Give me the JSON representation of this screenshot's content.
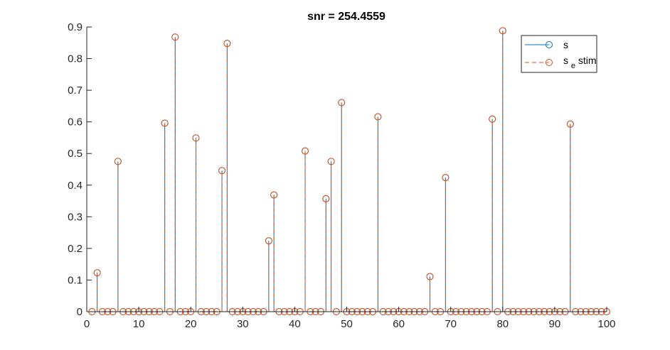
{
  "chart_data": {
    "type": "stem",
    "title": "snr = 254.4559",
    "xlabel": "",
    "ylabel": "",
    "xlim": [
      0,
      100
    ],
    "ylim": [
      0,
      0.9
    ],
    "xticks": [
      0,
      10,
      20,
      30,
      40,
      50,
      60,
      70,
      80,
      90,
      100
    ],
    "yticks": [
      0,
      0.1,
      0.2,
      0.3,
      0.4,
      0.5,
      0.6,
      0.7,
      0.8,
      0.9
    ],
    "xtick_labels": [
      "0",
      "10",
      "20",
      "30",
      "40",
      "50",
      "60",
      "70",
      "80",
      "90",
      "100"
    ],
    "ytick_labels": [
      "0",
      "0.1",
      "0.2",
      "0.3",
      "0.4",
      "0.5",
      "0.6",
      "0.7",
      "0.8",
      "0.9"
    ],
    "grid": false,
    "legend_placement": "top-right",
    "x": [
      1,
      2,
      3,
      4,
      5,
      6,
      7,
      8,
      9,
      10,
      11,
      12,
      13,
      14,
      15,
      16,
      17,
      18,
      19,
      20,
      21,
      22,
      23,
      24,
      25,
      26,
      27,
      28,
      29,
      30,
      31,
      32,
      33,
      34,
      35,
      36,
      37,
      38,
      39,
      40,
      41,
      42,
      43,
      44,
      45,
      46,
      47,
      48,
      49,
      50,
      51,
      52,
      53,
      54,
      55,
      56,
      57,
      58,
      59,
      60,
      61,
      62,
      63,
      64,
      65,
      66,
      67,
      68,
      69,
      70,
      71,
      72,
      73,
      74,
      75,
      76,
      77,
      78,
      79,
      80,
      81,
      82,
      83,
      84,
      85,
      86,
      87,
      88,
      89,
      90,
      91,
      92,
      93,
      94,
      95,
      96,
      97,
      98,
      99,
      100
    ],
    "series": [
      {
        "name": "s",
        "color": "#0072BD",
        "line_style": "solid",
        "marker": "circle",
        "values": [
          0,
          0.123,
          0,
          0,
          0,
          0.475,
          0,
          0,
          0,
          0,
          0,
          0,
          0,
          0,
          0.596,
          0,
          0.868,
          0,
          0,
          0,
          0.549,
          0,
          0,
          0,
          0,
          0.446,
          0.848,
          0,
          0,
          0,
          0,
          0,
          0,
          0,
          0.224,
          0.369,
          0,
          0,
          0,
          0,
          0,
          0.508,
          0,
          0,
          0,
          0.357,
          0.475,
          0,
          0.661,
          0,
          0,
          0,
          0,
          0,
          0,
          0.616,
          0,
          0,
          0,
          0,
          0,
          0,
          0,
          0,
          0,
          0.111,
          0,
          0,
          0.424,
          0,
          0,
          0,
          0,
          0,
          0,
          0,
          0,
          0.609,
          0,
          0.888,
          0,
          0,
          0,
          0,
          0,
          0,
          0,
          0,
          0,
          0,
          0,
          0,
          0.593,
          0,
          0,
          0,
          0,
          0,
          0,
          0
        ]
      },
      {
        "name": "s_estim",
        "color": "#D95319",
        "line_style": "dashed",
        "marker": "circle",
        "values": [
          0,
          0.123,
          0,
          0,
          0,
          0.475,
          0,
          0,
          0,
          0,
          0,
          0,
          0,
          0,
          0.596,
          0,
          0.868,
          0,
          0,
          0,
          0.549,
          0,
          0,
          0,
          0,
          0.446,
          0.848,
          0,
          0,
          0,
          0,
          0,
          0,
          0,
          0.224,
          0.369,
          0,
          0,
          0,
          0,
          0,
          0.508,
          0,
          0,
          0,
          0.357,
          0.475,
          0,
          0.661,
          0,
          0,
          0,
          0,
          0,
          0,
          0.616,
          0,
          0,
          0,
          0,
          0,
          0,
          0,
          0,
          0,
          0.111,
          0,
          0,
          0.424,
          0,
          0,
          0,
          0,
          0,
          0,
          0,
          0,
          0.609,
          0,
          0.888,
          0,
          0,
          0,
          0,
          0,
          0,
          0,
          0,
          0,
          0,
          0,
          0,
          0.593,
          0,
          0,
          0,
          0,
          0,
          0,
          0
        ]
      }
    ],
    "legend": [
      {
        "label": "s"
      },
      {
        "label_main": "s",
        "label_sub": "e",
        "label_rest": "stim"
      }
    ]
  }
}
